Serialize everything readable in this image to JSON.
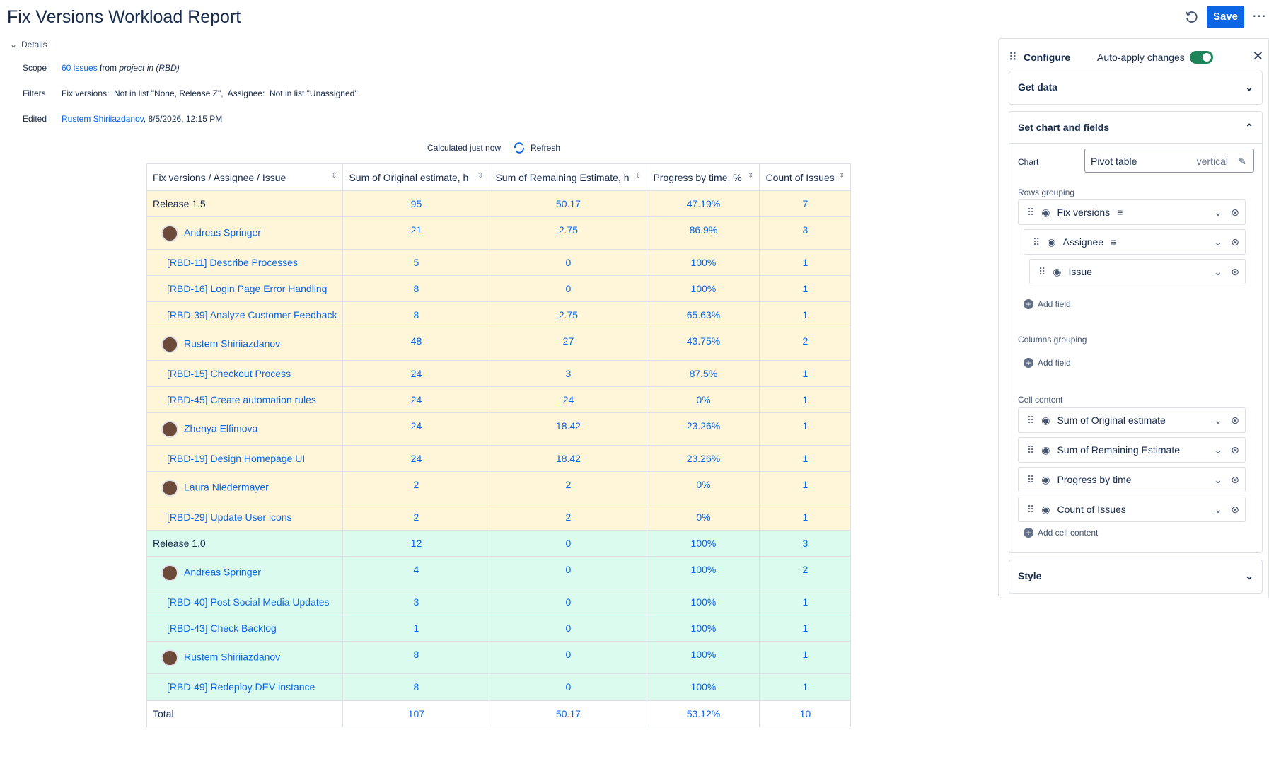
{
  "header": {
    "title": "Fix Versions Workload Report",
    "save": "Save"
  },
  "details": {
    "toggle": "Details",
    "scope": {
      "label": "Scope",
      "link": "60 issues",
      "text": "from",
      "project": "project in (RBD)"
    },
    "filters": {
      "label": "Filters",
      "text": "Fix versions:  Not in list \"None, Release Z\",  Assignee:  Not in list \"Unassigned\""
    },
    "edited": {
      "label": "Edited",
      "user": "Rustem Shiriiazdanov",
      "date": ", 8/5/2026, 12:15 PM"
    }
  },
  "status": {
    "text": "Calculated just now",
    "refresh": "Refresh"
  },
  "table": {
    "columns": [
      "Fix versions / Assignee / Issue",
      "Sum of Original estimate, h",
      "Sum of Remaining Estimate, h",
      "Progress by time, %",
      "Count of Issues"
    ],
    "groups": [
      {
        "color": "#fff6d9",
        "rows": [
          {
            "kind": "group",
            "label": "Release 1.5",
            "cells": [
              "95",
              "50.17",
              "47.19%",
              "7"
            ]
          },
          {
            "kind": "assignee",
            "label": "Andreas Springer",
            "cells": [
              "21",
              "2.75",
              "86.9%",
              "3"
            ]
          },
          {
            "kind": "issue",
            "label": "[RBD-11] Describe Processes",
            "cells": [
              "5",
              "0",
              "100%",
              "1"
            ]
          },
          {
            "kind": "issue",
            "label": "[RBD-16] Login Page Error Handling",
            "cells": [
              "8",
              "0",
              "100%",
              "1"
            ]
          },
          {
            "kind": "issue",
            "label": "[RBD-39] Analyze Customer Feedback",
            "cells": [
              "8",
              "2.75",
              "65.63%",
              "1"
            ]
          },
          {
            "kind": "assignee",
            "label": "Rustem Shiriiazdanov",
            "cells": [
              "48",
              "27",
              "43.75%",
              "2"
            ]
          },
          {
            "kind": "issue",
            "label": "[RBD-15] Checkout Process",
            "cells": [
              "24",
              "3",
              "87.5%",
              "1"
            ]
          },
          {
            "kind": "issue",
            "label": "[RBD-45] Create automation rules",
            "cells": [
              "24",
              "24",
              "0%",
              "1"
            ]
          },
          {
            "kind": "assignee",
            "label": "Zhenya Elfimova",
            "cells": [
              "24",
              "18.42",
              "23.26%",
              "1"
            ]
          },
          {
            "kind": "issue",
            "label": "[RBD-19] Design Homepage UI",
            "cells": [
              "24",
              "18.42",
              "23.26%",
              "1"
            ]
          },
          {
            "kind": "assignee",
            "label": "Laura Niedermayer",
            "cells": [
              "2",
              "2",
              "0%",
              "1"
            ]
          },
          {
            "kind": "issue",
            "label": "[RBD-29] Update User icons",
            "cells": [
              "2",
              "2",
              "0%",
              "1"
            ]
          }
        ]
      },
      {
        "color": "#dcfbef",
        "rows": [
          {
            "kind": "group",
            "label": "Release 1.0",
            "cells": [
              "12",
              "0",
              "100%",
              "3"
            ]
          },
          {
            "kind": "assignee",
            "label": "Andreas Springer",
            "cells": [
              "4",
              "0",
              "100%",
              "2"
            ]
          },
          {
            "kind": "issue",
            "label": "[RBD-40] Post Social Media Updates",
            "cells": [
              "3",
              "0",
              "100%",
              "1"
            ]
          },
          {
            "kind": "issue",
            "label": "[RBD-43] Check Backlog",
            "cells": [
              "1",
              "0",
              "100%",
              "1"
            ]
          },
          {
            "kind": "assignee",
            "label": "Rustem Shiriiazdanov",
            "cells": [
              "8",
              "0",
              "100%",
              "1"
            ]
          },
          {
            "kind": "issue",
            "label": "[RBD-49] Redeploy DEV instance",
            "cells": [
              "8",
              "0",
              "100%",
              "1"
            ]
          }
        ]
      }
    ],
    "total": {
      "label": "Total",
      "cells": [
        "107",
        "50.17",
        "53.12%",
        "10"
      ]
    }
  },
  "panel": {
    "title": "Configure",
    "auto": "Auto-apply changes",
    "get_data": "Get data",
    "set_chart": "Set chart and fields",
    "style": "Style",
    "chart": {
      "label": "Chart",
      "value": "Pivot table",
      "orientation": "vertical"
    },
    "rows_grouping": {
      "label": "Rows grouping",
      "fields": [
        "Fix versions",
        "Assignee",
        "Issue"
      ],
      "add": "Add field"
    },
    "columns_grouping": {
      "label": "Columns grouping",
      "add": "Add field"
    },
    "cell_content": {
      "label": "Cell content",
      "fields": [
        "Sum of Original estimate",
        "Sum of Remaining Estimate",
        "Progress by time",
        "Count of Issues"
      ],
      "add": "Add cell content"
    }
  }
}
